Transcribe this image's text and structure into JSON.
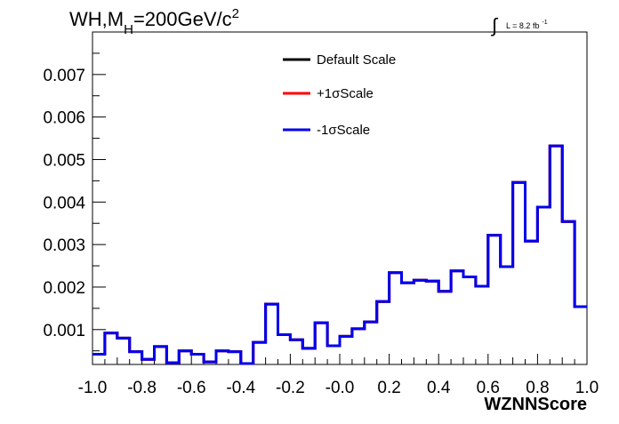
{
  "chart_data": {
    "type": "line",
    "step": true,
    "title": {
      "prefix": "WH,M",
      "sub": "H",
      "middle": "=200GeV/c",
      "sup": "2"
    },
    "lumi_label": "L = 8.2 fb",
    "lumi_sup": "-1",
    "xlabel": "WZNNScore",
    "ylabel": "",
    "xlim": [
      -1.0,
      1.0
    ],
    "ylim": [
      0.00018,
      0.008
    ],
    "x_ticks": [
      "-1.0",
      "-0.8",
      "-0.6",
      "-0.4",
      "-0.2",
      "-0.0",
      "0.2",
      "0.4",
      "0.6",
      "0.8",
      "1.0"
    ],
    "y_ticks": [
      "0.001",
      "0.002",
      "0.003",
      "0.004",
      "0.005",
      "0.006",
      "0.007"
    ],
    "grid": false,
    "legend_position": "top-center",
    "bin_edges": [
      -1.0,
      -0.95,
      -0.9,
      -0.85,
      -0.8,
      -0.75,
      -0.7,
      -0.65,
      -0.6,
      -0.55,
      -0.5,
      -0.45,
      -0.4,
      -0.35,
      -0.3,
      -0.25,
      -0.2,
      -0.15,
      -0.1,
      -0.05,
      0.0,
      0.05,
      0.1,
      0.15,
      0.2,
      0.25,
      0.3,
      0.35,
      0.4,
      0.45,
      0.5,
      0.55,
      0.6,
      0.65,
      0.7,
      0.75,
      0.8,
      0.85,
      0.9,
      0.95,
      1.0
    ],
    "series": [
      {
        "name": "Default Scale",
        "color": "#000000",
        "values": [
          0.00042,
          0.00092,
          0.0008,
          0.00048,
          0.0003,
          0.0006,
          0.00022,
          0.0005,
          0.00042,
          0.00024,
          0.0005,
          0.00048,
          0.0002,
          0.0007,
          0.0016,
          0.00088,
          0.00076,
          0.00056,
          0.00116,
          0.00062,
          0.00084,
          0.00102,
          0.00118,
          0.00166,
          0.00234,
          0.0021,
          0.00216,
          0.00214,
          0.0019,
          0.00238,
          0.00224,
          0.00202,
          0.00322,
          0.00248,
          0.00446,
          0.00308,
          0.00388,
          0.00532,
          0.00354,
          0.00154
        ]
      },
      {
        "name": "+1σScale",
        "color": "#ff0000",
        "values": [
          0.00042,
          0.00092,
          0.0008,
          0.00048,
          0.0003,
          0.0006,
          0.00022,
          0.0005,
          0.00042,
          0.00024,
          0.0005,
          0.00048,
          0.0002,
          0.0007,
          0.0016,
          0.00088,
          0.00076,
          0.00056,
          0.00116,
          0.00062,
          0.00084,
          0.00102,
          0.00118,
          0.00166,
          0.00234,
          0.0021,
          0.00216,
          0.00214,
          0.0019,
          0.00238,
          0.00224,
          0.00202,
          0.00322,
          0.00248,
          0.00446,
          0.00308,
          0.00388,
          0.00532,
          0.00354,
          0.00154
        ]
      },
      {
        "name": "-1σScale",
        "color": "#0000ee",
        "values": [
          0.00042,
          0.00092,
          0.0008,
          0.00048,
          0.0003,
          0.0006,
          0.00022,
          0.0005,
          0.00042,
          0.00024,
          0.0005,
          0.00048,
          0.0002,
          0.0007,
          0.0016,
          0.00088,
          0.00076,
          0.00056,
          0.00116,
          0.00062,
          0.00084,
          0.00102,
          0.00118,
          0.00166,
          0.00234,
          0.0021,
          0.00216,
          0.00214,
          0.0019,
          0.00238,
          0.00224,
          0.00202,
          0.00322,
          0.00248,
          0.00446,
          0.00308,
          0.00388,
          0.00532,
          0.00354,
          0.00154
        ]
      }
    ]
  }
}
